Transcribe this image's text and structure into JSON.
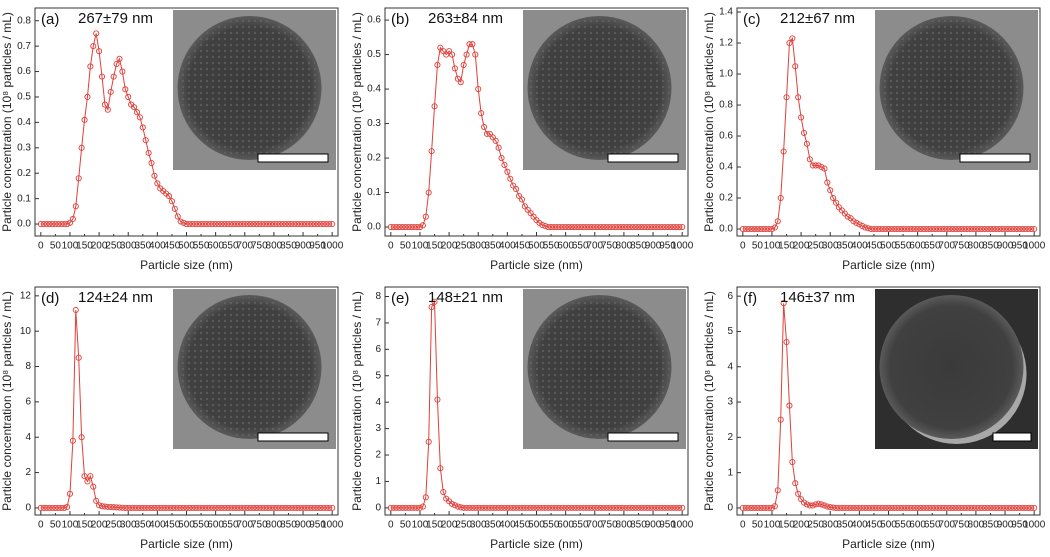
{
  "chart_data": [
    {
      "type": "line",
      "panel_label": "(a)",
      "annotation": "267±79 nm",
      "x_label": "Particle size (nm)",
      "y_label": "Particle concentration (10⁸ particles / mL)",
      "xlim": [
        -20,
        1020
      ],
      "xticks": [
        0,
        50,
        100,
        150,
        200,
        250,
        300,
        350,
        400,
        450,
        500,
        550,
        600,
        650,
        700,
        750,
        800,
        850,
        900,
        950,
        1000
      ],
      "ylim": [
        -0.047,
        0.85
      ],
      "yticks": [
        {
          "value": 0,
          "label": "0.0"
        },
        0.1,
        0.2,
        0.3,
        0.4,
        0.5,
        0.6,
        0.7,
        0.8
      ],
      "x": [
        0,
        10,
        20,
        30,
        40,
        50,
        60,
        70,
        80,
        90,
        100,
        110,
        120,
        130,
        140,
        150,
        160,
        170,
        180,
        190,
        200,
        210,
        220,
        230,
        240,
        250,
        260,
        270,
        280,
        290,
        300,
        310,
        320,
        330,
        340,
        350,
        360,
        370,
        380,
        390,
        400,
        410,
        420,
        430,
        440,
        450,
        460,
        470,
        480,
        490,
        500,
        510,
        520,
        530,
        540,
        550,
        560,
        570,
        580,
        590,
        600,
        610,
        620,
        630,
        640,
        650,
        660,
        670,
        680,
        690,
        700,
        710,
        720,
        730,
        740,
        750,
        760,
        770,
        780,
        790,
        800,
        810,
        820,
        830,
        840,
        850,
        860,
        870,
        880,
        890,
        900,
        910,
        920,
        930,
        940,
        950,
        960,
        970,
        980,
        990,
        1000
      ],
      "color": "#e0403a",
      "values": [
        0,
        0,
        0,
        0,
        0,
        0,
        0,
        0,
        0,
        0,
        0.005,
        0.02,
        0.07,
        0.18,
        0.3,
        0.41,
        0.5,
        0.62,
        0.7,
        0.75,
        0.68,
        0.58,
        0.47,
        0.45,
        0.52,
        0.58,
        0.63,
        0.65,
        0.6,
        0.53,
        0.5,
        0.47,
        0.46,
        0.44,
        0.42,
        0.38,
        0.33,
        0.28,
        0.24,
        0.19,
        0.16,
        0.14,
        0.13,
        0.12,
        0.11,
        0.09,
        0.06,
        0.03,
        0.01,
        0.005,
        0,
        0,
        0,
        0,
        0,
        0,
        0,
        0,
        0,
        0,
        0,
        0,
        0,
        0,
        0,
        0,
        0,
        0,
        0,
        0,
        0,
        0,
        0,
        0,
        0,
        0,
        0,
        0,
        0,
        0,
        0,
        0,
        0,
        0,
        0,
        0,
        0,
        0,
        0,
        0,
        0,
        0,
        0,
        0,
        0,
        0,
        0,
        0,
        0,
        0,
        0
      ]
    },
    {
      "type": "line",
      "panel_label": "(b)",
      "annotation": "263±84 nm",
      "x_label": "Particle size (nm)",
      "y_label": "Particle concentration (10⁸ particles / mL)",
      "xlim": [
        -20,
        1020
      ],
      "xticks": [
        0,
        50,
        100,
        150,
        200,
        250,
        300,
        350,
        400,
        450,
        500,
        550,
        600,
        650,
        700,
        750,
        800,
        850,
        900,
        950,
        1000
      ],
      "ylim": [
        -0.026,
        0.635
      ],
      "yticks": [
        {
          "value": 0,
          "label": "0.0"
        },
        0.1,
        0.2,
        0.3,
        0.4,
        0.5,
        0.6
      ],
      "x": [
        0,
        10,
        20,
        30,
        40,
        50,
        60,
        70,
        80,
        90,
        100,
        110,
        120,
        130,
        140,
        150,
        160,
        170,
        180,
        190,
        200,
        210,
        220,
        230,
        240,
        250,
        260,
        270,
        280,
        290,
        300,
        310,
        320,
        330,
        340,
        350,
        360,
        370,
        380,
        390,
        400,
        410,
        420,
        430,
        440,
        450,
        460,
        470,
        480,
        490,
        500,
        510,
        520,
        530,
        540,
        550,
        560,
        570,
        580,
        590,
        600,
        610,
        620,
        630,
        640,
        650,
        660,
        670,
        680,
        690,
        700,
        710,
        720,
        730,
        740,
        750,
        760,
        770,
        780,
        790,
        800,
        810,
        820,
        830,
        840,
        850,
        860,
        870,
        880,
        890,
        900,
        910,
        920,
        930,
        940,
        950,
        960,
        970,
        980,
        990,
        1000
      ],
      "color": "#e0403a",
      "values": [
        0,
        0,
        0,
        0,
        0,
        0,
        0,
        0,
        0,
        0,
        0,
        0.005,
        0.03,
        0.1,
        0.22,
        0.35,
        0.47,
        0.52,
        0.51,
        0.5,
        0.51,
        0.5,
        0.46,
        0.43,
        0.42,
        0.47,
        0.5,
        0.53,
        0.53,
        0.5,
        0.4,
        0.33,
        0.29,
        0.27,
        0.27,
        0.26,
        0.25,
        0.23,
        0.2,
        0.18,
        0.16,
        0.14,
        0.12,
        0.11,
        0.09,
        0.08,
        0.06,
        0.05,
        0.04,
        0.03,
        0.02,
        0.012,
        0.006,
        0.003,
        0,
        0,
        0,
        0,
        0,
        0,
        0,
        0,
        0,
        0,
        0,
        0,
        0,
        0,
        0,
        0,
        0,
        0,
        0,
        0,
        0,
        0,
        0,
        0,
        0,
        0,
        0,
        0,
        0,
        0,
        0,
        0,
        0,
        0,
        0,
        0,
        0,
        0,
        0,
        0,
        0,
        0,
        0,
        0,
        0,
        0,
        0
      ]
    },
    {
      "type": "line",
      "panel_label": "(c)",
      "annotation": "212±67 nm",
      "x_label": "Particle size (nm)",
      "y_label": "Particle concentration (10⁸ particles / mL)",
      "xlim": [
        -20,
        1020
      ],
      "xticks": [
        0,
        50,
        100,
        150,
        200,
        250,
        300,
        350,
        400,
        450,
        500,
        550,
        600,
        650,
        700,
        750,
        800,
        850,
        900,
        950,
        1000
      ],
      "ylim": [
        -0.045,
        1.426
      ],
      "yticks": [
        {
          "value": 0,
          "label": "0.0"
        },
        0.2,
        0.4,
        0.6,
        0.8,
        {
          "value": 1,
          "label": "1.0"
        },
        1.2,
        1.4
      ],
      "x": [
        0,
        10,
        20,
        30,
        40,
        50,
        60,
        70,
        80,
        90,
        100,
        110,
        120,
        130,
        140,
        150,
        160,
        170,
        180,
        190,
        200,
        210,
        220,
        230,
        240,
        250,
        260,
        270,
        280,
        290,
        300,
        310,
        320,
        330,
        340,
        350,
        360,
        370,
        380,
        390,
        400,
        410,
        420,
        430,
        440,
        450,
        460,
        470,
        480,
        490,
        500,
        510,
        520,
        530,
        540,
        550,
        560,
        570,
        580,
        590,
        600,
        610,
        620,
        630,
        640,
        650,
        660,
        670,
        680,
        690,
        700,
        710,
        720,
        730,
        740,
        750,
        760,
        770,
        780,
        790,
        800,
        810,
        820,
        830,
        840,
        850,
        860,
        870,
        880,
        890,
        900,
        910,
        920,
        930,
        940,
        950,
        960,
        970,
        980,
        990,
        1000
      ],
      "color": "#e0403a",
      "values": [
        0,
        0,
        0,
        0,
        0,
        0,
        0,
        0,
        0,
        0,
        0,
        0.01,
        0.05,
        0.2,
        0.5,
        0.85,
        1.2,
        1.23,
        1.05,
        0.85,
        0.72,
        0.62,
        0.55,
        0.45,
        0.41,
        0.41,
        0.41,
        0.4,
        0.39,
        0.3,
        0.25,
        0.2,
        0.17,
        0.14,
        0.12,
        0.1,
        0.08,
        0.07,
        0.05,
        0.04,
        0.03,
        0.02,
        0.01,
        0.005,
        0,
        0,
        0,
        0,
        0,
        0,
        0,
        0,
        0,
        0,
        0,
        0,
        0,
        0,
        0,
        0,
        0,
        0,
        0,
        0,
        0,
        0,
        0,
        0,
        0,
        0,
        0,
        0,
        0,
        0,
        0,
        0,
        0,
        0,
        0,
        0,
        0,
        0,
        0,
        0,
        0,
        0,
        0,
        0,
        0,
        0,
        0,
        0,
        0,
        0,
        0,
        0,
        0,
        0,
        0,
        0,
        0
      ]
    },
    {
      "type": "line",
      "panel_label": "(d)",
      "annotation": "124±24 nm",
      "x_label": "Particle size (nm)",
      "y_label": "Particle concentration (10⁸ particles / mL)",
      "xlim": [
        -20,
        1020
      ],
      "xticks": [
        0,
        50,
        100,
        150,
        200,
        250,
        300,
        350,
        400,
        450,
        500,
        550,
        600,
        650,
        700,
        750,
        800,
        850,
        900,
        950,
        1000
      ],
      "ylim": [
        -0.4,
        12.5
      ],
      "yticks": [
        0,
        2,
        4,
        6,
        8,
        10,
        12
      ],
      "x": [
        0,
        10,
        20,
        30,
        40,
        50,
        60,
        70,
        80,
        90,
        100,
        110,
        120,
        130,
        140,
        150,
        160,
        170,
        180,
        190,
        200,
        210,
        220,
        230,
        240,
        250,
        260,
        270,
        280,
        290,
        300,
        310,
        320,
        330,
        340,
        350,
        360,
        370,
        380,
        390,
        400,
        410,
        420,
        430,
        440,
        450,
        460,
        470,
        480,
        490,
        500,
        510,
        520,
        530,
        540,
        550,
        560,
        570,
        580,
        590,
        600,
        610,
        620,
        630,
        640,
        650,
        660,
        670,
        680,
        690,
        700,
        710,
        720,
        730,
        740,
        750,
        760,
        770,
        780,
        790,
        800,
        810,
        820,
        830,
        840,
        850,
        860,
        870,
        880,
        890,
        900,
        910,
        920,
        930,
        940,
        950,
        960,
        970,
        980,
        990,
        1000
      ],
      "color": "#e0403a",
      "values": [
        0,
        0,
        0,
        0,
        0,
        0,
        0,
        0,
        0,
        0.05,
        0.8,
        3.8,
        11.2,
        8.5,
        4.0,
        1.8,
        1.5,
        1.8,
        1.2,
        0.4,
        0.15,
        0.1,
        0.08,
        0.06,
        0.05,
        0.04,
        0.03,
        0.02,
        0.01,
        0,
        0,
        0,
        0,
        0,
        0,
        0,
        0,
        0,
        0,
        0,
        0,
        0,
        0,
        0,
        0,
        0,
        0,
        0,
        0,
        0,
        0,
        0,
        0,
        0,
        0,
        0,
        0,
        0,
        0,
        0,
        0,
        0,
        0,
        0,
        0,
        0,
        0,
        0,
        0,
        0,
        0,
        0,
        0,
        0,
        0,
        0,
        0,
        0,
        0,
        0,
        0,
        0,
        0,
        0,
        0,
        0,
        0,
        0,
        0,
        0,
        0,
        0,
        0,
        0,
        0,
        0,
        0,
        0,
        0,
        0,
        0
      ]
    },
    {
      "type": "line",
      "panel_label": "(e)",
      "annotation": "148±21 nm",
      "x_label": "Particle size (nm)",
      "y_label": "Particle concentration (10⁸ particles / mL)",
      "xlim": [
        -20,
        1020
      ],
      "xticks": [
        0,
        50,
        100,
        150,
        200,
        250,
        300,
        350,
        400,
        450,
        500,
        550,
        600,
        650,
        700,
        750,
        800,
        850,
        900,
        950,
        1000
      ],
      "ylim": [
        -0.27,
        8.36
      ],
      "yticks": [
        0,
        1,
        2,
        3,
        4,
        5,
        6,
        7,
        8
      ],
      "x": [
        0,
        10,
        20,
        30,
        40,
        50,
        60,
        70,
        80,
        90,
        100,
        110,
        120,
        130,
        140,
        150,
        160,
        170,
        180,
        190,
        200,
        210,
        220,
        230,
        240,
        250,
        260,
        270,
        280,
        290,
        300,
        310,
        320,
        330,
        340,
        350,
        360,
        370,
        380,
        390,
        400,
        410,
        420,
        430,
        440,
        450,
        460,
        470,
        480,
        490,
        500,
        510,
        520,
        530,
        540,
        550,
        560,
        570,
        580,
        590,
        600,
        610,
        620,
        630,
        640,
        650,
        660,
        670,
        680,
        690,
        700,
        710,
        720,
        730,
        740,
        750,
        760,
        770,
        780,
        790,
        800,
        810,
        820,
        830,
        840,
        850,
        860,
        870,
        880,
        890,
        900,
        910,
        920,
        930,
        940,
        950,
        960,
        970,
        980,
        990,
        1000
      ],
      "color": "#e0403a",
      "values": [
        0,
        0,
        0,
        0,
        0,
        0,
        0,
        0,
        0,
        0,
        0,
        0.05,
        0.4,
        2.5,
        7.6,
        7.8,
        4.1,
        1.5,
        0.6,
        0.35,
        0.25,
        0.15,
        0.1,
        0.05,
        0.02,
        0,
        0,
        0,
        0,
        0,
        0,
        0,
        0,
        0,
        0,
        0,
        0,
        0,
        0,
        0,
        0,
        0,
        0,
        0,
        0,
        0,
        0,
        0,
        0,
        0,
        0,
        0,
        0,
        0,
        0,
        0,
        0,
        0,
        0,
        0,
        0,
        0,
        0,
        0,
        0,
        0,
        0,
        0,
        0,
        0,
        0,
        0,
        0,
        0,
        0,
        0,
        0,
        0,
        0,
        0,
        0,
        0,
        0,
        0,
        0,
        0,
        0,
        0,
        0,
        0,
        0,
        0,
        0,
        0,
        0,
        0,
        0,
        0,
        0,
        0,
        0
      ]
    },
    {
      "type": "line",
      "panel_label": "(f)",
      "annotation": "146±37 nm",
      "x_label": "Particle size (nm)",
      "y_label": "Particle concentration (10⁸ particles / mL)",
      "xlim": [
        -20,
        1020
      ],
      "xticks": [
        0,
        50,
        100,
        150,
        200,
        250,
        300,
        350,
        400,
        450,
        500,
        550,
        600,
        650,
        700,
        750,
        800,
        850,
        900,
        950,
        1000
      ],
      "ylim": [
        -0.2,
        6.26
      ],
      "yticks": [
        0,
        1,
        2,
        3,
        4,
        5,
        6
      ],
      "x": [
        0,
        10,
        20,
        30,
        40,
        50,
        60,
        70,
        80,
        90,
        100,
        110,
        120,
        130,
        140,
        150,
        160,
        170,
        180,
        190,
        200,
        210,
        220,
        230,
        240,
        250,
        260,
        270,
        280,
        290,
        300,
        310,
        320,
        330,
        340,
        350,
        360,
        370,
        380,
        390,
        400,
        410,
        420,
        430,
        440,
        450,
        460,
        470,
        480,
        490,
        500,
        510,
        520,
        530,
        540,
        550,
        560,
        570,
        580,
        590,
        600,
        610,
        620,
        630,
        640,
        650,
        660,
        670,
        680,
        690,
        700,
        710,
        720,
        730,
        740,
        750,
        760,
        770,
        780,
        790,
        800,
        810,
        820,
        830,
        840,
        850,
        860,
        870,
        880,
        890,
        900,
        910,
        920,
        930,
        940,
        950,
        960,
        970,
        980,
        990,
        1000
      ],
      "color": "#e0403a",
      "values": [
        0,
        0,
        0,
        0,
        0,
        0,
        0,
        0,
        0,
        0,
        0,
        0.05,
        0.5,
        2.5,
        5.8,
        4.7,
        2.9,
        1.3,
        0.7,
        0.4,
        0.25,
        0.15,
        0.1,
        0.07,
        0.07,
        0.1,
        0.12,
        0.1,
        0.07,
        0.04,
        0.02,
        0.01,
        0,
        0,
        0,
        0,
        0,
        0,
        0,
        0,
        0,
        0,
        0,
        0,
        0,
        0,
        0,
        0,
        0,
        0,
        0,
        0,
        0,
        0,
        0,
        0,
        0,
        0,
        0,
        0,
        0,
        0,
        0,
        0,
        0,
        0,
        0,
        0,
        0,
        0,
        0,
        0,
        0,
        0,
        0,
        0,
        0,
        0,
        0,
        0,
        0,
        0,
        0,
        0,
        0,
        0,
        0,
        0,
        0,
        0,
        0,
        0,
        0,
        0,
        0,
        0,
        0,
        0,
        0,
        0,
        0
      ]
    }
  ]
}
